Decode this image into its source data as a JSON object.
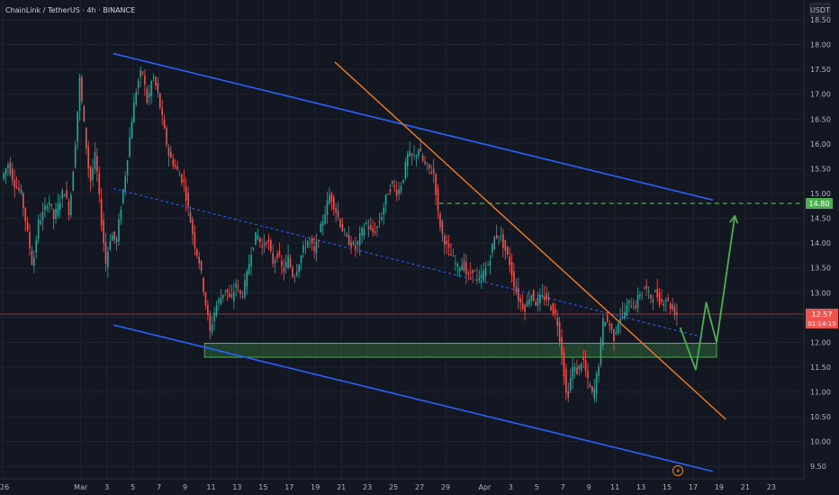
{
  "header": {
    "symbol_line": "ChainLink / TetherUS · 4h · BINANCE",
    "currency": "USDT"
  },
  "price_tag": {
    "price": "12.57",
    "countdown": "01:14:15"
  },
  "target_tag": {
    "price": "14.80"
  },
  "colors": {
    "background": "#131722",
    "grid": "#1f2330",
    "up": "#26a69a",
    "down": "#ef5350",
    "channel": "#2962ff",
    "trendline": "#f57c20",
    "zone": "#4caf50",
    "projection": "#4caf50",
    "price_line": "#ef5350"
  },
  "chart_data": {
    "type": "candlestick",
    "y_ticks": [
      "9.50",
      "10.00",
      "10.50",
      "11.00",
      "11.50",
      "12.00",
      "12.50",
      "13.00",
      "13.50",
      "14.00",
      "14.50",
      "15.00",
      "15.50",
      "16.00",
      "16.50",
      "17.00",
      "17.50",
      "18.00",
      "18.50"
    ],
    "ylim": [
      9.25,
      18.9
    ],
    "x_ticks": [
      {
        "label": "26",
        "day": -5
      },
      {
        "label": "Mar",
        "day": 1
      },
      {
        "label": "3",
        "day": 3
      },
      {
        "label": "5",
        "day": 5
      },
      {
        "label": "7",
        "day": 7
      },
      {
        "label": "9",
        "day": 9
      },
      {
        "label": "11",
        "day": 11
      },
      {
        "label": "13",
        "day": 13
      },
      {
        "label": "15",
        "day": 15
      },
      {
        "label": "17",
        "day": 17
      },
      {
        "label": "19",
        "day": 19
      },
      {
        "label": "21",
        "day": 21
      },
      {
        "label": "23",
        "day": 23
      },
      {
        "label": "25",
        "day": 25
      },
      {
        "label": "27",
        "day": 27
      },
      {
        "label": "29",
        "day": 29
      },
      {
        "label": "Apr",
        "day": 32
      },
      {
        "label": "3",
        "day": 34
      },
      {
        "label": "5",
        "day": 36
      },
      {
        "label": "7",
        "day": 38
      },
      {
        "label": "9",
        "day": 40
      },
      {
        "label": "11",
        "day": 42
      },
      {
        "label": "13",
        "day": 44
      },
      {
        "label": "15",
        "day": 46
      },
      {
        "label": "17",
        "day": 48
      },
      {
        "label": "19",
        "day": 50
      },
      {
        "label": "21",
        "day": 52
      },
      {
        "label": "23",
        "day": 54
      }
    ],
    "xlim": [
      -5.2,
      56.5
    ],
    "current_price": 12.57,
    "target_level": 14.8,
    "price_path": [
      [
        -5.0,
        15.3
      ],
      [
        -4.5,
        15.6
      ],
      [
        -4.0,
        15.2
      ],
      [
        -3.5,
        15.0
      ],
      [
        -3.0,
        14.2
      ],
      [
        -2.6,
        13.5
      ],
      [
        -2.2,
        14.4
      ],
      [
        -1.8,
        14.6
      ],
      [
        -1.4,
        14.9
      ],
      [
        -1.0,
        14.5
      ],
      [
        -0.6,
        14.8
      ],
      [
        -0.2,
        15.1
      ],
      [
        0.2,
        14.6
      ],
      [
        0.6,
        15.8
      ],
      [
        1.0,
        17.3
      ],
      [
        1.4,
        16.2
      ],
      [
        1.8,
        15.2
      ],
      [
        2.2,
        15.8
      ],
      [
        2.6,
        14.6
      ],
      [
        3.0,
        13.6
      ],
      [
        3.4,
        14.2
      ],
      [
        3.8,
        14.0
      ],
      [
        4.2,
        14.8
      ],
      [
        4.6,
        15.6
      ],
      [
        5.0,
        16.5
      ],
      [
        5.4,
        17.2
      ],
      [
        5.8,
        17.5
      ],
      [
        6.2,
        16.8
      ],
      [
        6.6,
        17.4
      ],
      [
        7.0,
        17.0
      ],
      [
        7.4,
        16.4
      ],
      [
        7.8,
        15.8
      ],
      [
        8.2,
        15.6
      ],
      [
        8.6,
        15.4
      ],
      [
        9.0,
        15.2
      ],
      [
        9.4,
        14.6
      ],
      [
        9.8,
        14.0
      ],
      [
        10.2,
        13.6
      ],
      [
        10.6,
        12.9
      ],
      [
        11.0,
        12.2
      ],
      [
        11.4,
        12.7
      ],
      [
        11.8,
        12.9
      ],
      [
        12.2,
        13.1
      ],
      [
        12.6,
        12.8
      ],
      [
        13.0,
        13.2
      ],
      [
        13.4,
        12.9
      ],
      [
        13.8,
        13.3
      ],
      [
        14.2,
        13.9
      ],
      [
        14.6,
        14.2
      ],
      [
        15.0,
        13.9
      ],
      [
        15.4,
        14.1
      ],
      [
        15.8,
        13.6
      ],
      [
        16.2,
        13.8
      ],
      [
        16.6,
        13.4
      ],
      [
        17.0,
        13.7
      ],
      [
        17.4,
        13.3
      ],
      [
        17.8,
        13.6
      ],
      [
        18.2,
        13.9
      ],
      [
        18.6,
        14.1
      ],
      [
        19.0,
        13.8
      ],
      [
        19.4,
        14.2
      ],
      [
        19.8,
        14.6
      ],
      [
        20.2,
        15.0
      ],
      [
        20.6,
        14.7
      ],
      [
        21.0,
        14.4
      ],
      [
        21.4,
        14.1
      ],
      [
        21.8,
        14.0
      ],
      [
        22.2,
        13.9
      ],
      [
        22.6,
        14.2
      ],
      [
        23.0,
        14.4
      ],
      [
        23.4,
        14.2
      ],
      [
        23.8,
        14.3
      ],
      [
        24.2,
        14.6
      ],
      [
        24.6,
        15.0
      ],
      [
        25.0,
        15.2
      ],
      [
        25.4,
        15.0
      ],
      [
        25.8,
        15.3
      ],
      [
        26.2,
        15.8
      ],
      [
        26.6,
        15.7
      ],
      [
        27.0,
        15.9
      ],
      [
        27.4,
        15.6
      ],
      [
        27.8,
        15.5
      ],
      [
        28.2,
        15.4
      ],
      [
        28.5,
        14.6
      ],
      [
        28.8,
        14.2
      ],
      [
        29.2,
        13.9
      ],
      [
        29.6,
        13.7
      ],
      [
        30.0,
        13.5
      ],
      [
        30.4,
        13.6
      ],
      [
        30.8,
        13.3
      ],
      [
        31.2,
        13.5
      ],
      [
        31.6,
        13.2
      ],
      [
        32.0,
        13.4
      ],
      [
        32.4,
        13.6
      ],
      [
        32.8,
        14.1
      ],
      [
        33.2,
        14.2
      ],
      [
        33.6,
        13.9
      ],
      [
        34.0,
        13.6
      ],
      [
        34.4,
        13.1
      ],
      [
        34.8,
        12.8
      ],
      [
        35.2,
        12.7
      ],
      [
        35.6,
        13.0
      ],
      [
        36.0,
        12.8
      ],
      [
        36.4,
        12.9
      ],
      [
        36.8,
        12.9
      ],
      [
        37.2,
        12.7
      ],
      [
        37.6,
        12.5
      ],
      [
        38.0,
        11.8
      ],
      [
        38.4,
        10.8
      ],
      [
        38.8,
        11.5
      ],
      [
        39.2,
        11.4
      ],
      [
        39.6,
        11.7
      ],
      [
        40.0,
        11.2
      ],
      [
        40.4,
        10.9
      ],
      [
        40.8,
        11.5
      ],
      [
        41.2,
        12.5
      ],
      [
        41.6,
        12.4
      ],
      [
        42.0,
        12.1
      ],
      [
        42.4,
        12.5
      ],
      [
        42.8,
        12.6
      ],
      [
        43.2,
        12.8
      ],
      [
        43.6,
        12.7
      ],
      [
        44.0,
        13.0
      ],
      [
        44.4,
        13.1
      ],
      [
        44.8,
        12.9
      ],
      [
        45.2,
        13.0
      ],
      [
        45.6,
        12.8
      ],
      [
        46.0,
        12.9
      ],
      [
        46.4,
        12.7
      ],
      [
        46.8,
        12.57
      ]
    ],
    "channel_top": [
      [
        3.5,
        17.82
      ],
      [
        49.5,
        14.87
      ]
    ],
    "channel_mid": [
      [
        3.5,
        15.1
      ],
      [
        48.8,
        12.1
      ]
    ],
    "channel_bottom": [
      [
        3.5,
        12.35
      ],
      [
        49.5,
        9.4
      ]
    ],
    "trendline": [
      [
        20.5,
        17.65
      ],
      [
        50.5,
        10.45
      ]
    ],
    "support_zone": {
      "from_day": 10.5,
      "to_day": 49.8,
      "low": 11.7,
      "high": 11.98
    },
    "target_line": {
      "from_day": 28.5,
      "to_day": 56.2
    },
    "projection": [
      [
        47.0,
        12.3
      ],
      [
        48.2,
        11.45
      ],
      [
        49.0,
        12.8
      ],
      [
        49.8,
        12.0
      ],
      [
        51.2,
        14.55
      ]
    ]
  }
}
